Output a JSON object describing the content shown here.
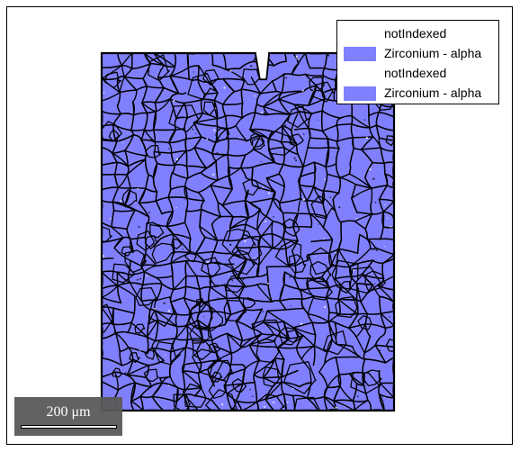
{
  "legend": {
    "items": [
      {
        "label": "notIndexed",
        "color": "#ffffff"
      },
      {
        "label": "Zirconium - alpha",
        "color": "#8080ff"
      },
      {
        "label": "notIndexed",
        "color": "#ffffff"
      },
      {
        "label": "Zirconium - alpha",
        "color": "#8080ff"
      }
    ]
  },
  "scalebar": {
    "label": "200 μm"
  },
  "map": {
    "phase_color": "#8080ff",
    "boundary_color": "#000000",
    "not_indexed_color": "#ffffff"
  }
}
